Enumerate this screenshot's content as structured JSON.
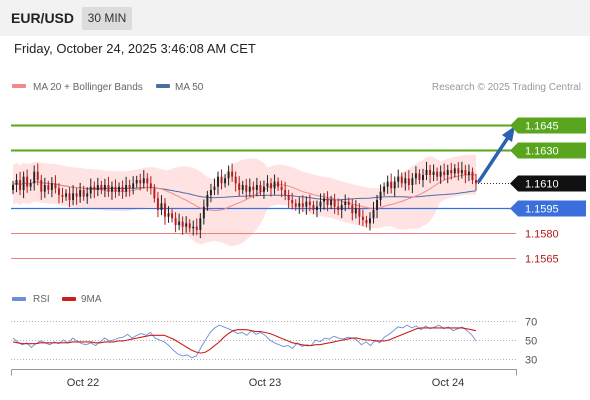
{
  "header": {
    "symbol": "EUR/USD",
    "timeframe": "30 MIN",
    "timestamp": "Friday, October 24, 2025 3:46:08 AM CET"
  },
  "legend": {
    "ma20_bb": "MA 20 + Bollinger Bands",
    "ma50": "MA 50",
    "credit": "Research © 2025 Trading Central",
    "rsi": "RSI",
    "ma9": "9MA"
  },
  "colors": {
    "bullish": "#222222",
    "bearish": "#b01c1c",
    "ma20": "#f08a8a",
    "bands": "#ffdede",
    "ma50": "#4a6fa5",
    "resistance": "#5aa51e",
    "pivot": "#3a6fdc",
    "support": "#e88080",
    "arrow": "#2b62b0",
    "rsi": "#6b8fd6",
    "rsi_ma": "#cc1e1e"
  },
  "chart_data": [
    {
      "type": "candlestick",
      "xlabels": [
        "Oct 22",
        "Oct 23",
        "Oct 24"
      ],
      "ylim": [
        1.1552,
        1.166
      ],
      "current_price": 1.161,
      "levels": [
        {
          "value": 1.1645,
          "label": "1.1645",
          "kind": "resistance"
        },
        {
          "value": 1.163,
          "label": "1.1630",
          "kind": "resistance"
        },
        {
          "value": 1.161,
          "label": "1.1610",
          "kind": "current"
        },
        {
          "value": 1.1595,
          "label": "1.1595",
          "kind": "pivot"
        },
        {
          "value": 1.158,
          "label": "1.1580",
          "kind": "support"
        },
        {
          "value": 1.1565,
          "label": "1.1565",
          "kind": "support"
        }
      ],
      "target_path": [
        [
          1.161
        ],
        [
          1.1645
        ]
      ],
      "series": [
        {
          "name": "MA 20 + Bollinger Bands"
        },
        {
          "name": "MA 50"
        }
      ],
      "closes": [
        1.1609,
        1.1612,
        1.1606,
        1.1614,
        1.1608,
        1.161,
        1.1617,
        1.1612,
        1.1605,
        1.1609,
        1.1606,
        1.161,
        1.1607,
        1.1603,
        1.1602,
        1.1604,
        1.16,
        1.1604,
        1.1602,
        1.1606,
        1.1602,
        1.1604,
        1.1608,
        1.1606,
        1.1609,
        1.1606,
        1.1609,
        1.1605,
        1.1608,
        1.1605,
        1.1608,
        1.1605,
        1.1609,
        1.1607,
        1.161,
        1.1612,
        1.161,
        1.1613,
        1.161,
        1.1607,
        1.1601,
        1.1594,
        1.1598,
        1.159,
        1.1592,
        1.1589,
        1.1585,
        1.1587,
        1.1584,
        1.1586,
        1.1583,
        1.1584,
        1.1582,
        1.1589,
        1.1596,
        1.1603,
        1.1606,
        1.1608,
        1.1614,
        1.161,
        1.1613,
        1.1617,
        1.1614,
        1.161,
        1.1606,
        1.1609,
        1.1605,
        1.1608,
        1.1606,
        1.1609,
        1.1605,
        1.1608,
        1.161,
        1.1607,
        1.1611,
        1.1608,
        1.1606,
        1.1603,
        1.16,
        1.1598,
        1.1596,
        1.1598,
        1.1596,
        1.1599,
        1.1597,
        1.1594,
        1.1596,
        1.1599,
        1.1601,
        1.1597,
        1.16,
        1.1596,
        1.1594,
        1.1597,
        1.1599,
        1.1597,
        1.1592,
        1.1595,
        1.159,
        1.1588,
        1.1586,
        1.1589,
        1.1594,
        1.16,
        1.1605,
        1.1608,
        1.1611,
        1.1607,
        1.1611,
        1.1614,
        1.161,
        1.1613,
        1.1609,
        1.1613,
        1.1616,
        1.1612,
        1.1615,
        1.1618,
        1.1615,
        1.1617,
        1.1614,
        1.1617,
        1.1615,
        1.1618,
        1.1616,
        1.1619,
        1.1616,
        1.1618,
        1.1615,
        1.1617,
        1.1612,
        1.161
      ]
    },
    {
      "type": "line",
      "title": "RSI",
      "ylim": [
        20,
        80
      ],
      "ytick_labels": [
        "70",
        "50",
        "30"
      ],
      "ytick_values": [
        70,
        50,
        30
      ],
      "series": [
        {
          "name": "RSI",
          "values": [
            52,
            48,
            45,
            47,
            42,
            46,
            49,
            47,
            45,
            48,
            46,
            50,
            47,
            52,
            49,
            46,
            45,
            47,
            44,
            48,
            52,
            49,
            50,
            52,
            53,
            56,
            52,
            55,
            57,
            55,
            58,
            52,
            50,
            48,
            44,
            39,
            35,
            33,
            34,
            31,
            33,
            42,
            50,
            58,
            63,
            66,
            64,
            62,
            60,
            57,
            58,
            55,
            60,
            56,
            58,
            55,
            50,
            47,
            45,
            43,
            44,
            41,
            47,
            43,
            45,
            44,
            50,
            48,
            52,
            51,
            54,
            52,
            51,
            53,
            52,
            50,
            45,
            48,
            44,
            50,
            47,
            53,
            56,
            60,
            64,
            63,
            66,
            63,
            65,
            61,
            65,
            62,
            64,
            66,
            62,
            64,
            60,
            62,
            64,
            60,
            56,
            49
          ]
        },
        {
          "name": "9MA",
          "values": [
            48,
            47,
            46,
            46,
            46,
            46,
            47,
            47,
            47,
            47,
            47,
            47,
            47,
            48,
            48,
            48,
            48,
            48,
            47,
            47,
            48,
            48,
            48,
            49,
            49,
            50,
            51,
            52,
            53,
            54,
            55,
            55,
            55,
            55,
            53,
            51,
            48,
            45,
            42,
            39,
            37,
            36,
            37,
            40,
            44,
            48,
            53,
            57,
            60,
            61,
            61,
            61,
            60,
            59,
            59,
            58,
            57,
            55,
            53,
            51,
            49,
            47,
            46,
            45,
            44,
            44,
            45,
            45,
            46,
            47,
            48,
            49,
            50,
            51,
            52,
            52,
            51,
            50,
            50,
            49,
            49,
            49,
            50,
            52,
            54,
            56,
            58,
            60,
            62,
            63,
            63,
            63,
            63,
            63,
            63,
            63,
            63,
            63,
            63,
            62,
            61,
            60
          ]
        }
      ]
    }
  ]
}
